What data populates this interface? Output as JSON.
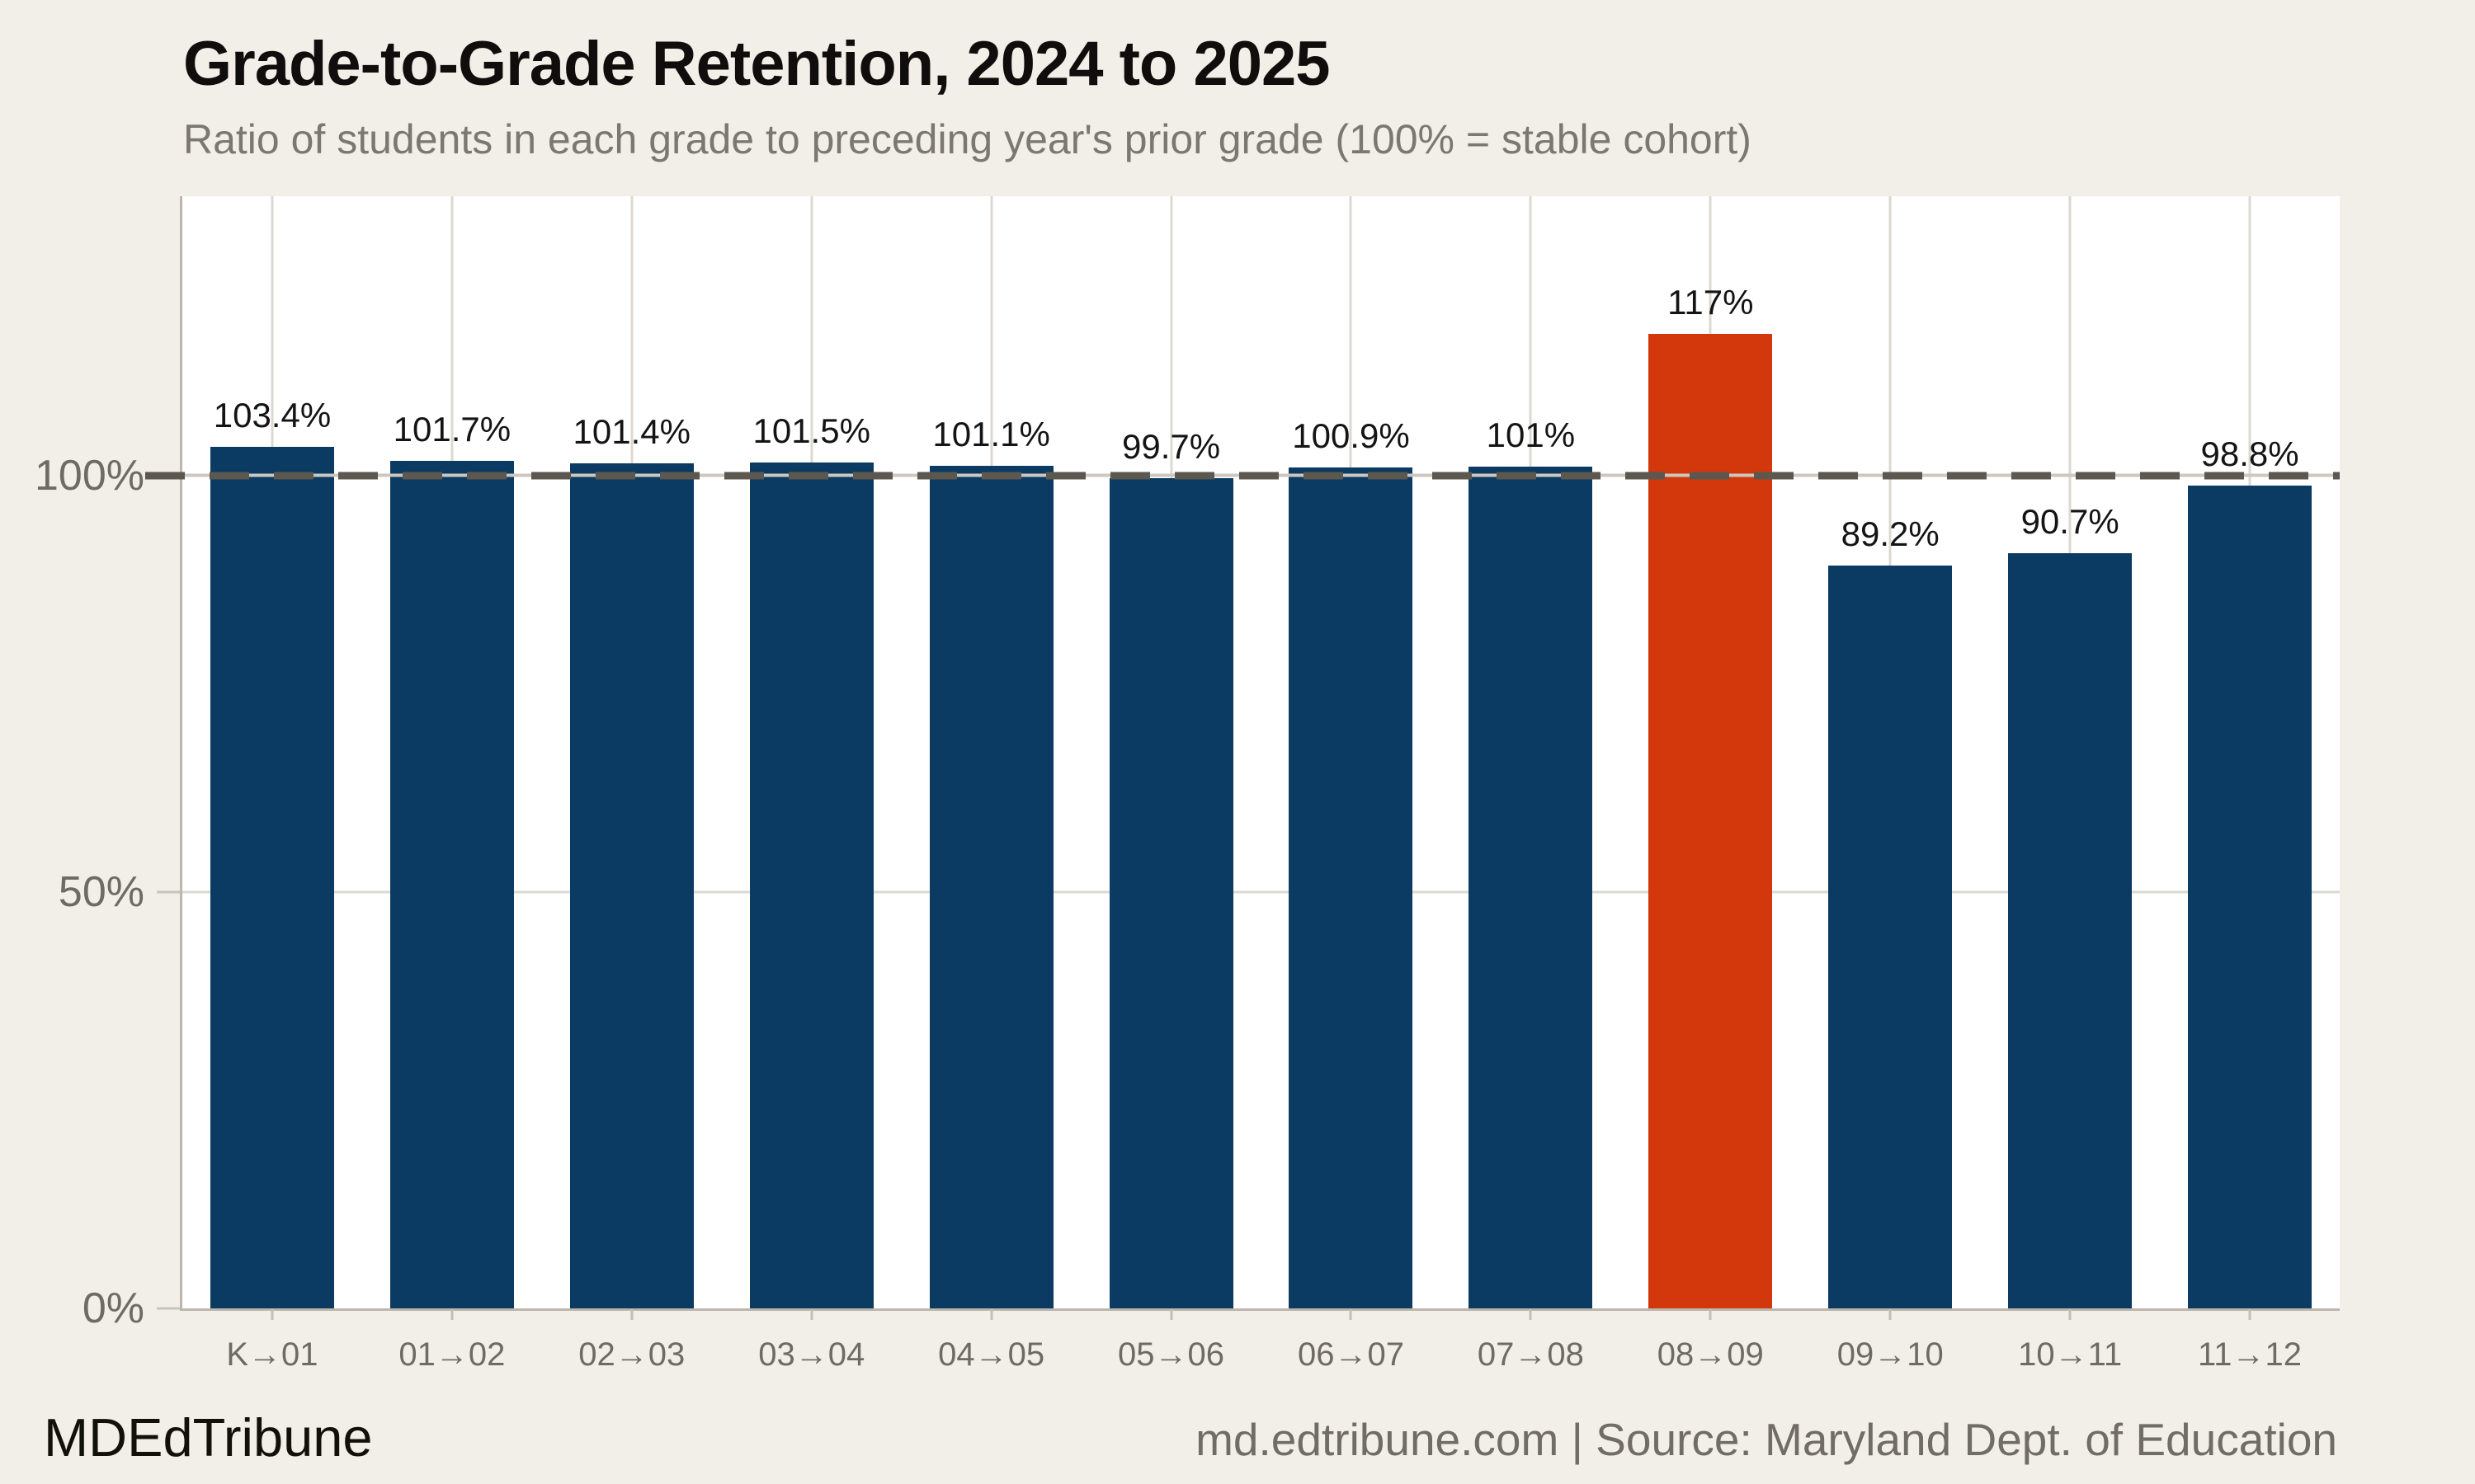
{
  "header": {
    "title": "Grade-to-Grade Retention, 2024 to 2025",
    "subtitle": "Ratio of students in each grade to preceding year's prior grade (100% = stable cohort)"
  },
  "footer": {
    "brand": "MDEdTribune",
    "source": "md.edtribune.com | Source: Maryland Dept. of Education"
  },
  "chart_data": {
    "type": "bar",
    "title": "Grade-to-Grade Retention, 2024 to 2025",
    "subtitle": "Ratio of students in each grade to preceding year's prior grade (100% = stable cohort)",
    "categories": [
      "K→01",
      "01→02",
      "02→03",
      "03→04",
      "04→05",
      "05→06",
      "06→07",
      "07→08",
      "08→09",
      "09→10",
      "10→11",
      "11→12"
    ],
    "values": [
      103.4,
      101.7,
      101.4,
      101.5,
      101.1,
      99.7,
      100.9,
      101,
      117,
      89.2,
      90.7,
      98.8
    ],
    "value_labels": [
      "103.4%",
      "101.7%",
      "101.4%",
      "101.5%",
      "101.1%",
      "99.7%",
      "100.9%",
      "101%",
      "117%",
      "89.2%",
      "90.7%",
      "98.8%"
    ],
    "highlight_index": 8,
    "xlabel": "",
    "ylabel": "",
    "ylim": [
      0,
      133.5
    ],
    "yticks": [
      {
        "value": 0,
        "label": "0%"
      },
      {
        "value": 50,
        "label": "50%"
      },
      {
        "value": 100,
        "label": "100%"
      }
    ],
    "reference_line": {
      "value": 100,
      "style": "dashed"
    },
    "grid": {
      "vertical_per_category": true,
      "horizontal_at_yticks": true
    },
    "legend": "none",
    "colors": {
      "bar": "#0b3a62",
      "highlight": "#d2380c",
      "background": "#f2efe9",
      "plot_background": "#ffffff",
      "gridline": "#ddd9d1",
      "axis": "#bcb7ad",
      "reference_dash": "#5c5850",
      "text_muted": "#6f6b62",
      "value_label": "#141414"
    }
  }
}
